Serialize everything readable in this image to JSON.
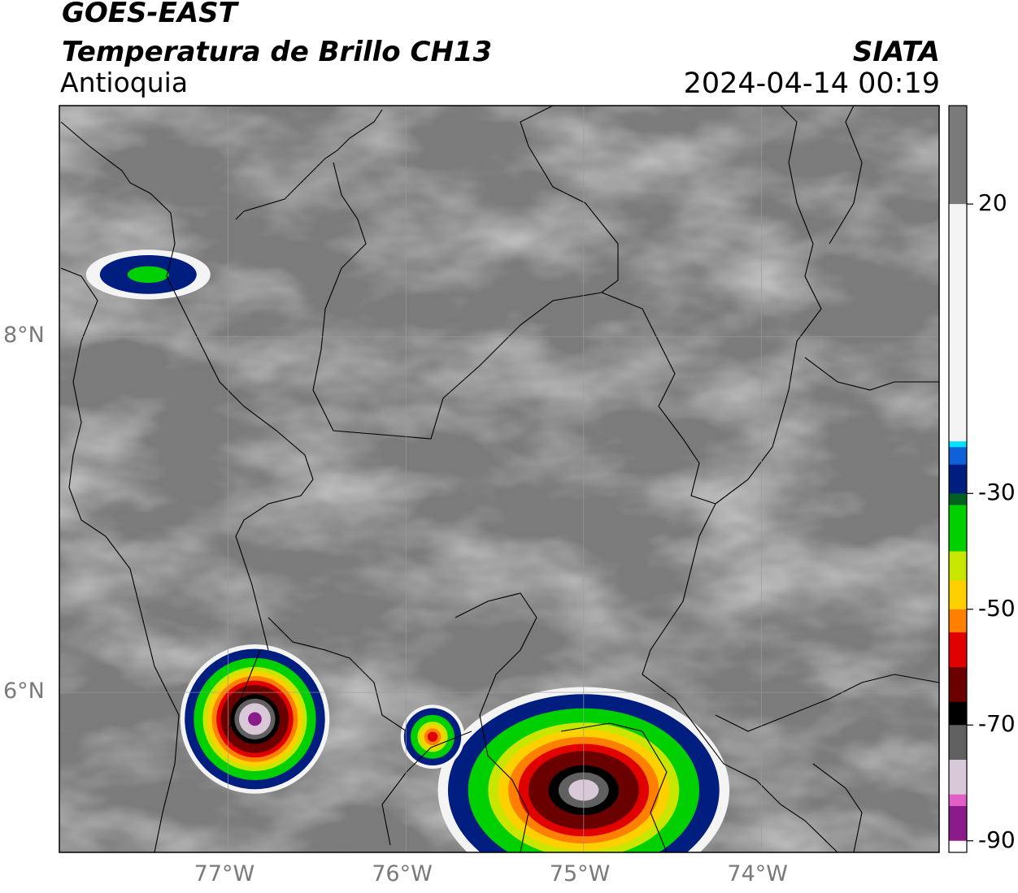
{
  "header": {
    "satellite": "GOES-EAST",
    "product": "Temperatura de Brillo CH13",
    "region": "Antioquia",
    "brand": "SIATA",
    "timestamp": "2024-04-14 00:19"
  },
  "map": {
    "lon_range": [
      -77.95,
      -73.0
    ],
    "lat_range": [
      5.1,
      9.3
    ],
    "lat_labels": [
      {
        "value": 8,
        "text": "8°N"
      },
      {
        "value": 6,
        "text": "6°N"
      }
    ],
    "lon_labels": [
      {
        "value": -77,
        "text": "77°W"
      },
      {
        "value": -76,
        "text": "76°W"
      },
      {
        "value": -75,
        "text": "75°W"
      },
      {
        "value": -74,
        "text": "74°W"
      }
    ],
    "storm_cells": [
      {
        "name": "storm-cell-west",
        "lon": -76.85,
        "lat": 5.85,
        "rx": 0.42,
        "ry": 0.42,
        "min_temp": -85
      },
      {
        "name": "storm-cell-south",
        "lon": -75.0,
        "lat": 5.45,
        "rx": 0.82,
        "ry": 0.58,
        "min_temp": -78
      },
      {
        "name": "storm-cell-small",
        "lon": -75.85,
        "lat": 5.75,
        "rx": 0.18,
        "ry": 0.18,
        "min_temp": -58
      },
      {
        "name": "storm-cell-northwest",
        "lon": -77.45,
        "lat": 8.35,
        "rx": 0.35,
        "ry": 0.14,
        "min_temp": -38
      }
    ]
  },
  "colorbar": {
    "range": [
      -92,
      37
    ],
    "ticks": [
      {
        "value": 20,
        "text": "20"
      },
      {
        "value": -30,
        "text": "-30"
      },
      {
        "value": -50,
        "text": "-50"
      },
      {
        "value": -70,
        "text": "-70"
      },
      {
        "value": -90,
        "text": "-90"
      }
    ],
    "stops": [
      {
        "v": -92,
        "c": "#ffffff"
      },
      {
        "v": -90,
        "c": "#8b1a8b"
      },
      {
        "v": -84,
        "c": "#e060c8"
      },
      {
        "v": -82,
        "c": "#d8c8d8"
      },
      {
        "v": -76,
        "c": "#606060"
      },
      {
        "v": -70,
        "c": "#000000"
      },
      {
        "v": -66,
        "c": "#6b0000"
      },
      {
        "v": -60,
        "c": "#e00000"
      },
      {
        "v": -54,
        "c": "#ff8000"
      },
      {
        "v": -50,
        "c": "#ffd000"
      },
      {
        "v": -45,
        "c": "#c8e600"
      },
      {
        "v": -40,
        "c": "#00d000"
      },
      {
        "v": -32,
        "c": "#006020"
      },
      {
        "v": -30,
        "c": "#001e80"
      },
      {
        "v": -25,
        "c": "#1060d8"
      },
      {
        "v": -22,
        "c": "#00e0ff"
      },
      {
        "v": -21,
        "c": "#f4f4f4"
      },
      {
        "v": 20,
        "c": "#7a7a7a"
      },
      {
        "v": 37,
        "c": "#0a0a0a"
      }
    ]
  }
}
